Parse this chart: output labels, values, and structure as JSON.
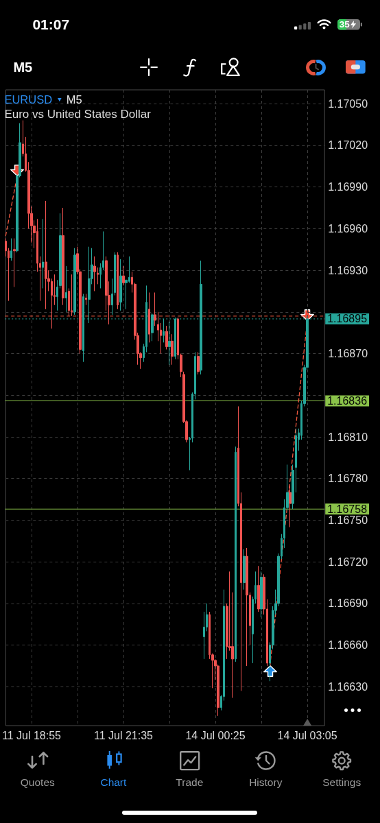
{
  "chart_data": {
    "type": "candlestick",
    "title": "EURUSD",
    "subtitle": "Euro vs United States Dollar",
    "annotations": [
      "01:07",
      "35",
      "M5",
      "M5",
      "Quotes",
      "Chart",
      "Trade",
      "History",
      "Settings"
    ],
    "categories": [
      null,
      null,
      null,
      null,
      null,
      null,
      null,
      null,
      null,
      "11 Jul 18:55",
      null,
      null,
      null,
      null,
      null,
      null,
      null,
      null,
      null,
      null,
      null,
      null,
      null,
      null,
      null,
      null,
      null,
      null,
      null,
      null,
      null,
      null,
      null,
      null,
      null,
      null,
      null,
      null,
      null,
      null,
      null,
      "11 Jul 21:35",
      null,
      null,
      null,
      null,
      null,
      null,
      null,
      null,
      null,
      null,
      null,
      null,
      null,
      null,
      null,
      null,
      null,
      null,
      null,
      null,
      null,
      null,
      null,
      null,
      null,
      null,
      null,
      null,
      null,
      null,
      null,
      "14 Jul 00:25",
      null,
      null,
      null,
      null,
      null,
      null,
      null,
      null,
      null,
      null,
      null,
      null,
      null,
      null,
      null,
      null,
      null,
      null,
      null,
      null,
      null,
      null,
      null,
      null,
      null,
      null,
      null,
      null,
      null,
      null,
      null,
      "14 Jul 03:05"
    ],
    "ohlc": [
      [
        1.16951,
        1.16953,
        1.1694,
        1.16944
      ],
      [
        1.16944,
        1.16946,
        1.16908,
        1.16939
      ],
      [
        1.16939,
        1.16953,
        1.16937,
        1.16944
      ],
      [
        1.16945,
        1.16953,
        1.16918,
        1.16944
      ],
      [
        1.16944,
        1.16999,
        1.16943,
        1.16998
      ],
      [
        1.16998,
        1.17036,
        1.16997,
        1.17022
      ],
      [
        1.17021,
        1.17038,
        1.17012,
        1.17014
      ],
      [
        1.17014,
        1.17026,
        1.17001,
        1.17002
      ],
      [
        1.17002,
        1.17008,
        1.1696,
        1.16971
      ],
      [
        1.16971,
        1.16976,
        1.1695,
        1.16962
      ],
      [
        1.16962,
        1.16966,
        1.16946,
        1.16957
      ],
      [
        1.16958,
        1.16967,
        1.16929,
        1.16935
      ],
      [
        1.16935,
        1.1694,
        1.16908,
        1.16932
      ],
      [
        1.16932,
        1.16967,
        1.16917,
        1.16936
      ],
      [
        1.16936,
        1.1698,
        1.16902,
        1.16924
      ],
      [
        1.16924,
        1.1693,
        1.16915,
        1.16922
      ],
      [
        1.16922,
        1.16924,
        1.16888,
        1.16912
      ],
      [
        1.16912,
        1.16927,
        1.16905,
        1.16911
      ],
      [
        1.16911,
        1.16923,
        1.16901,
        1.16918
      ],
      [
        1.16919,
        1.16971,
        1.16917,
        1.16955
      ],
      [
        1.16955,
        1.16975,
        1.16905,
        1.1691
      ],
      [
        1.1691,
        1.16933,
        1.169,
        1.16914
      ],
      [
        1.16915,
        1.16917,
        1.16897,
        1.16901
      ],
      [
        1.16901,
        1.16927,
        1.16897,
        1.169
      ],
      [
        1.169,
        1.16946,
        1.16898,
        1.16941
      ],
      [
        1.16942,
        1.16947,
        1.16927,
        1.16929
      ],
      [
        1.16929,
        1.16931,
        1.1687,
        1.16873
      ],
      [
        1.16872,
        1.16913,
        1.16864,
        1.16911
      ],
      [
        1.1691,
        1.16913,
        1.16905,
        1.16909
      ],
      [
        1.16909,
        1.16947,
        1.16892,
        1.16924
      ],
      [
        1.16924,
        1.16946,
        1.1692,
        1.16934
      ],
      [
        1.16933,
        1.1694,
        1.16915,
        1.16929
      ],
      [
        1.16928,
        1.16932,
        1.1692,
        1.16927
      ],
      [
        1.16927,
        1.16935,
        1.16917,
        1.16932
      ],
      [
        1.16932,
        1.16958,
        1.1693,
        1.16937
      ],
      [
        1.16937,
        1.1694,
        1.16901,
        1.16912
      ],
      [
        1.16912,
        1.16922,
        1.16891,
        1.16905
      ],
      [
        1.16905,
        1.16924,
        1.16898,
        1.16913
      ],
      [
        1.16914,
        1.16943,
        1.16912,
        1.16941
      ],
      [
        1.16941,
        1.16943,
        1.16902,
        1.16905
      ],
      [
        1.16907,
        1.16938,
        1.16901,
        1.16926
      ],
      [
        1.16926,
        1.16933,
        1.16919,
        1.16921
      ],
      [
        1.16921,
        1.16923,
        1.16902,
        1.16923
      ],
      [
        1.16922,
        1.1694,
        1.16921,
        1.16925
      ],
      [
        1.16925,
        1.16929,
        1.16914,
        1.1692
      ],
      [
        1.1692,
        1.16921,
        1.1688,
        1.16883
      ],
      [
        1.16883,
        1.16885,
        1.16862,
        1.1687
      ],
      [
        1.1687,
        1.16871,
        1.16859,
        1.16867
      ],
      [
        1.16867,
        1.16877,
        1.16864,
        1.16875
      ],
      [
        1.16875,
        1.16919,
        1.16871,
        1.16907
      ],
      [
        1.16902,
        1.16914,
        1.16878,
        1.16884
      ],
      [
        1.16885,
        1.16899,
        1.16879,
        1.16898
      ],
      [
        1.16898,
        1.16914,
        1.1689,
        1.16894
      ],
      [
        1.16891,
        1.169,
        1.16879,
        1.16887
      ],
      [
        1.16887,
        1.16892,
        1.1687,
        1.16883
      ],
      [
        1.16883,
        1.16895,
        1.16878,
        1.16886
      ],
      [
        1.16886,
        1.1689,
        1.16873,
        1.16875
      ],
      [
        1.16875,
        1.16893,
        1.16862,
        1.16879
      ],
      [
        1.16879,
        1.16884,
        1.16862,
        1.16868
      ],
      [
        1.16868,
        1.16896,
        1.16866,
        1.16895
      ],
      [
        1.16895,
        1.16896,
        1.16866,
        1.16869
      ],
      [
        1.16869,
        1.1687,
        1.16853,
        1.16857
      ],
      [
        1.16855,
        1.16857,
        1.1682,
        1.16821
      ],
      [
        1.16821,
        1.16822,
        1.16806,
        1.16808
      ],
      [
        1.16808,
        1.1681,
        1.16786,
        1.16809
      ],
      [
        1.16809,
        1.16842,
        1.16806,
        1.16841
      ],
      [
        1.16841,
        1.16871,
        1.16837,
        1.16868
      ],
      [
        1.16868,
        1.16871,
        1.16855,
        1.16857
      ],
      [
        1.16858,
        1.16937,
        1.16855,
        1.1692
      ],
      [
        1.16666,
        1.16684,
        1.1665,
        1.16673
      ],
      [
        1.16673,
        1.1669,
        1.1667,
        1.16682
      ],
      [
        1.16682,
        1.16684,
        1.1665,
        1.16653
      ],
      [
        1.16653,
        1.16654,
        1.16629,
        1.16649
      ],
      [
        1.16649,
        1.1665,
        1.16635,
        1.16645
      ],
      [
        1.16645,
        1.16646,
        1.16609,
        1.16615
      ],
      [
        1.16615,
        1.16624,
        1.16613,
        1.16623
      ],
      [
        1.16623,
        1.167,
        1.1662,
        1.16688
      ],
      [
        1.16688,
        1.1669,
        1.1665,
        1.16659
      ],
      [
        1.16659,
        1.16713,
        1.16656,
        1.16658
      ],
      [
        1.16659,
        1.16698,
        1.16622,
        1.1665
      ],
      [
        1.1665,
        1.16803,
        1.16648,
        1.16799
      ],
      [
        1.16802,
        1.16832,
        1.1676,
        1.16762
      ],
      [
        1.16762,
        1.1677,
        1.16627,
        1.16705
      ],
      [
        1.16705,
        1.16729,
        1.167,
        1.16724
      ],
      [
        1.16724,
        1.1673,
        1.16645,
        1.16696
      ],
      [
        1.16696,
        1.16698,
        1.1666,
        1.16674
      ],
      [
        1.16668,
        1.16695,
        1.16647,
        1.16693
      ],
      [
        1.16693,
        1.16713,
        1.1669,
        1.16703
      ],
      [
        1.16703,
        1.16717,
        1.16684,
        1.16686
      ],
      [
        1.16686,
        1.16713,
        1.1668,
        1.16709
      ],
      [
        1.16709,
        1.16711,
        1.16682,
        1.16686
      ],
      [
        1.16686,
        1.16693,
        1.16645,
        1.16647
      ],
      [
        1.16647,
        1.16662,
        1.16634,
        1.1666
      ],
      [
        1.1666,
        1.16688,
        1.16657,
        1.16685
      ],
      [
        1.16685,
        1.167,
        1.16682,
        1.1669
      ],
      [
        1.1669,
        1.16726,
        1.16688,
        1.16724
      ],
      [
        1.16724,
        1.1674,
        1.16722,
        1.16737
      ],
      [
        1.16737,
        1.16765,
        1.1673,
        1.16759
      ],
      [
        1.16759,
        1.1679,
        1.16757,
        1.1677
      ],
      [
        1.1677,
        1.16775,
        1.16745,
        1.16762
      ],
      [
        1.16762,
        1.1679,
        1.16758,
        1.16786
      ],
      [
        1.16788,
        1.16816,
        1.1677,
        1.16811
      ],
      [
        1.16808,
        1.16816,
        1.168,
        1.16813
      ],
      [
        1.16811,
        1.16836,
        1.16808,
        1.16834
      ],
      [
        1.16834,
        1.16862,
        1.16832,
        1.1686
      ],
      [
        1.1686,
        1.16897,
        1.16858,
        1.16895
      ]
    ],
    "colors": [
      "#ef5350",
      "#ef5350",
      "#26a69a",
      "#ef5350",
      "#26a69a",
      "#26a69a",
      "#ef5350",
      "#ef5350",
      "#ef5350",
      "#ef5350",
      "#ef5350",
      "#ef5350",
      "#ef5350",
      "#26a69a",
      "#ef5350",
      "#ef5350",
      "#ef5350",
      "#ef5350",
      "#26a69a",
      "#26a69a",
      "#ef5350",
      "#26a69a",
      "#ef5350",
      "#ef5350",
      "#26a69a",
      "#ef5350",
      "#ef5350",
      "#26a69a",
      "#ef5350",
      "#26a69a",
      "#26a69a",
      "#ef5350",
      "#ef5350",
      "#26a69a",
      "#26a69a",
      "#ef5350",
      "#ef5350",
      "#26a69a",
      "#26a69a",
      "#ef5350",
      "#26a69a",
      "#ef5350",
      "#26a69a",
      "#26a69a",
      "#ef5350",
      "#ef5350",
      "#ef5350",
      "#ef5350",
      "#26a69a",
      "#26a69a",
      "#ef5350",
      "#26a69a",
      "#ef5350",
      "#ef5350",
      "#ef5350",
      "#26a69a",
      "#ef5350",
      "#26a69a",
      "#ef5350",
      "#26a69a",
      "#ef5350",
      "#ef5350",
      "#ef5350",
      "#ef5350",
      "#26a69a",
      "#26a69a",
      "#26a69a",
      "#ef5350",
      "#26a69a",
      "#26a69a",
      "#26a69a",
      "#ef5350",
      "#ef5350",
      "#ef5350",
      "#ef5350",
      "#26a69a",
      "#26a69a",
      "#ef5350",
      "#ef5350",
      "#ef5350",
      "#26a69a",
      "#ef5350",
      "#ef5350",
      "#26a69a",
      "#ef5350",
      "#ef5350",
      "#26a69a",
      "#26a69a",
      "#ef5350",
      "#26a69a",
      "#ef5350",
      "#ef5350",
      "#26a69a",
      "#26a69a",
      "#26a69a",
      "#26a69a",
      "#26a69a",
      "#26a69a",
      "#26a69a",
      "#ef5350",
      "#26a69a",
      "#26a69a",
      "#26a69a",
      "#26a69a",
      "#26a69a",
      "#26a69a"
    ],
    "series": [
      {
        "type": "line",
        "color": "#f0583f",
        "line_style": "dashed",
        "marker": "none",
        "values": [
          1.16955,
          null,
          null,
          null,
          1.16998,
          null,
          null,
          null,
          null,
          null,
          null,
          null,
          null,
          null,
          null,
          null,
          null,
          null,
          null,
          null,
          null,
          null,
          null,
          null,
          null,
          null,
          null,
          null,
          null,
          null,
          null,
          null,
          null,
          null,
          null,
          null,
          null,
          null,
          null,
          null,
          null,
          null,
          null,
          null,
          null,
          null,
          null,
          null,
          null,
          null,
          null,
          null,
          null,
          null,
          null,
          null,
          null,
          null,
          null,
          null,
          null,
          null,
          null,
          null,
          null,
          null,
          null,
          null,
          null,
          null,
          null,
          null,
          null,
          null,
          null,
          null,
          null,
          null,
          null,
          null,
          null,
          null,
          null,
          null,
          null,
          null,
          null,
          null,
          null,
          null,
          null,
          null,
          null,
          null,
          null,
          null,
          null,
          null,
          null,
          null,
          null,
          null,
          null,
          null,
          null,
          null
        ]
      },
      {
        "type": "line",
        "color": "#f0583f",
        "line_style": "dashed",
        "marker": "none",
        "values": [
          null,
          null,
          null,
          null,
          null,
          null,
          null,
          null,
          null,
          null,
          null,
          null,
          null,
          null,
          null,
          null,
          null,
          null,
          null,
          null,
          null,
          null,
          null,
          null,
          null,
          null,
          null,
          null,
          null,
          null,
          null,
          null,
          null,
          null,
          null,
          null,
          null,
          null,
          null,
          null,
          null,
          null,
          null,
          null,
          null,
          null,
          null,
          null,
          null,
          null,
          null,
          null,
          null,
          null,
          null,
          null,
          null,
          null,
          null,
          null,
          null,
          null,
          null,
          null,
          null,
          null,
          null,
          null,
          null,
          null,
          null,
          null,
          null,
          null,
          null,
          null,
          null,
          null,
          null,
          null,
          null,
          null,
          null,
          null,
          null,
          null,
          null,
          null,
          null,
          null,
          null,
          null,
          1.16645,
          null,
          null,
          null,
          null,
          null,
          null,
          null,
          null,
          null,
          null,
          null,
          null,
          1.16894
        ]
      }
    ],
    "ylim": [
      1.16602,
      1.1706
    ],
    "yticks": [
      {
        "value": 1.1663,
        "label": "1.16630"
      },
      {
        "value": 1.1666,
        "label": "1.16660"
      },
      {
        "value": 1.1669,
        "label": "1.16690"
      },
      {
        "value": 1.1672,
        "label": "1.16720"
      },
      {
        "value": 1.1675,
        "label": "1.16750"
      },
      {
        "value": 1.1678,
        "label": "1.16780"
      },
      {
        "value": 1.1681,
        "label": "1.16810"
      },
      {
        "value": 1.1684,
        "label": null
      },
      {
        "value": 1.1687,
        "label": "1.16870"
      },
      {
        "value": 1.169,
        "label": null
      },
      {
        "value": 1.1693,
        "label": "1.16930"
      },
      {
        "value": 1.1696,
        "label": "1.16960"
      },
      {
        "value": 1.1699,
        "label": "1.16990"
      },
      {
        "value": 1.1702,
        "label": "1.17020"
      },
      {
        "value": 1.1705,
        "label": "1.17050"
      }
    ],
    "grid": true,
    "ref_lines": [
      {
        "axis": "y",
        "value": 1.16897,
        "color": "#f0583f",
        "line_style": "dashed"
      },
      {
        "axis": "y",
        "value": 1.16895,
        "label": "1.16895",
        "color": "#26a69a",
        "line_style": "dotted"
      },
      {
        "axis": "y",
        "value": 1.16836,
        "label": "1.16836",
        "color": "#8bc34a",
        "line_style": "solid"
      },
      {
        "axis": "y",
        "value": 1.16758,
        "label": "1.16758",
        "color": "#8bc34a",
        "line_style": "solid"
      }
    ]
  }
}
